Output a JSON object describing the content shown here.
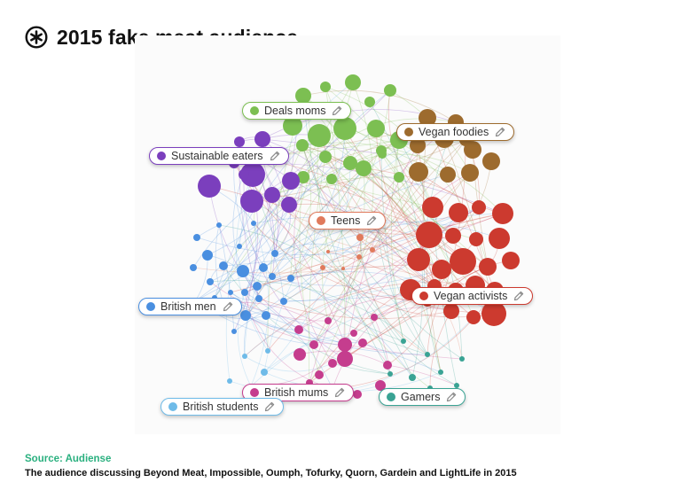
{
  "header": {
    "title": "2015 fake meat audience",
    "logo_icon": "audiense-logo-icon"
  },
  "network": {
    "clusters": [
      {
        "id": "deals_moms",
        "label": "Deals moms",
        "color": "#7cbf52"
      },
      {
        "id": "vegan_foodies",
        "label": "Vegan foodies",
        "color": "#9d6b2e"
      },
      {
        "id": "sustainable_eaters",
        "label": "Sustainable eaters",
        "color": "#7b3fbd"
      },
      {
        "id": "teens",
        "label": "Teens",
        "color": "#e07a5c"
      },
      {
        "id": "british_men",
        "label": "British men",
        "color": "#4a8fe0"
      },
      {
        "id": "vegan_activists",
        "label": "Vegan activists",
        "color": "#cc3a2f"
      },
      {
        "id": "british_mums",
        "label": "British mums",
        "color": "#c53d8e"
      },
      {
        "id": "gamers",
        "label": "Gamers",
        "color": "#3aa394"
      },
      {
        "id": "british_students",
        "label": "British students",
        "color": "#6fbbe8"
      }
    ],
    "edit_icon": "pencil-icon"
  },
  "footer": {
    "source": "Source: Audiense",
    "description": "The audience discussing Beyond Meat, Impossible, Oumph, Tofurky, Quorn, Gardein and LightLife in 2015"
  }
}
